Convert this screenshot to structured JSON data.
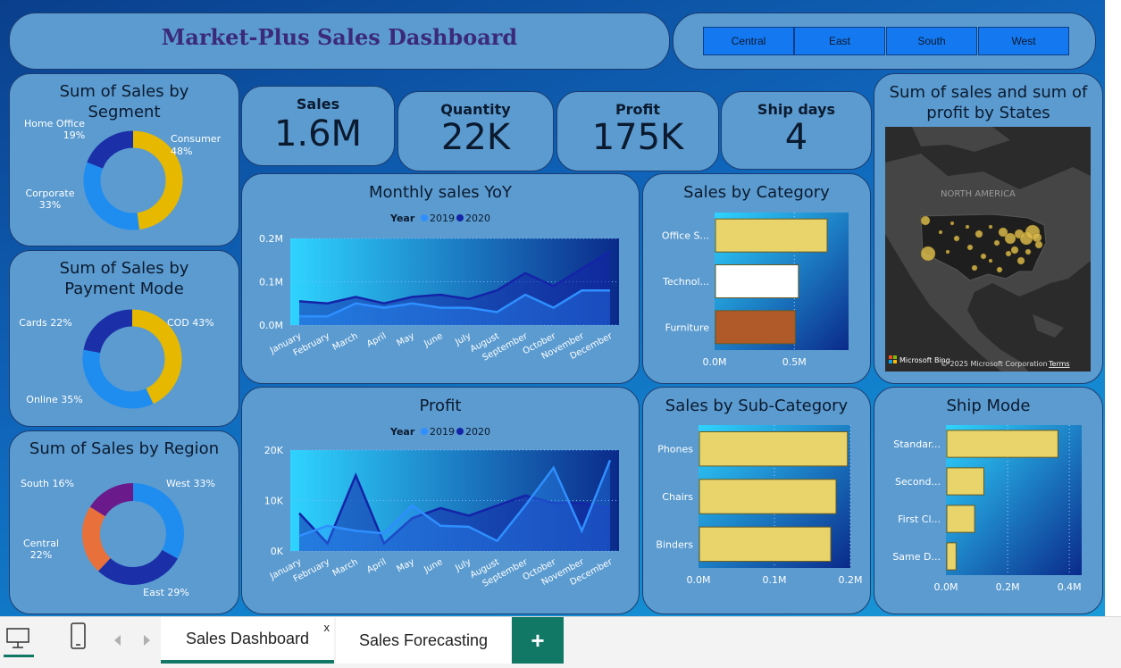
{
  "header": {
    "title": "Market-Plus Sales Dashboard"
  },
  "region_slicer": {
    "options": [
      "Central",
      "East",
      "South",
      "West"
    ]
  },
  "kpis": [
    {
      "label": "Sales",
      "value": "1.6M"
    },
    {
      "label": "Quantity",
      "value": "22K"
    },
    {
      "label": "Profit",
      "value": "175K"
    },
    {
      "label": "Ship days",
      "value": "4"
    }
  ],
  "segment_chart": {
    "title": "Sum of Sales by Segment"
  },
  "payment_chart": {
    "title": "Sum of Sales by Payment Mode"
  },
  "region_chart": {
    "title": "Sum of Sales by Region"
  },
  "monthly_chart": {
    "title": "Monthly sales YoY"
  },
  "profit_chart": {
    "title": "Profit"
  },
  "category_chart": {
    "title": "Sales by Category"
  },
  "subcategory_chart": {
    "title": "Sales by Sub-Category"
  },
  "shipmode_chart": {
    "title": "Ship Mode"
  },
  "map": {
    "title": "Sum of sales and sum of profit by States",
    "region_label": "NORTH AMERICA",
    "attribution": "Microsoft Bing",
    "copyright": "© 2025 Microsoft Corporation",
    "terms": "Terms"
  },
  "colors": {
    "series_2019": "#2f8fff",
    "series_2020": "#1424a8",
    "donut_gold": "#e6b800",
    "donut_blue": "#1f8cf0",
    "donut_navy": "#1a2fa8",
    "donut_orange": "#e8703a",
    "donut_purple": "#6a1a8a",
    "bar_gold": "#e8d46a",
    "bar_white": "#ffffff",
    "bar_rust": "#b05a2a",
    "canvas": "#0f63b8",
    "tab_accent": "#117865"
  },
  "tabs": {
    "items": [
      "Sales Dashboard",
      "Sales Forecasting"
    ],
    "active": "Sales Dashboard",
    "close_glyph": "x",
    "add_glyph": "+"
  },
  "chart_data": [
    {
      "type": "pie",
      "title": "Sum of Sales by Segment",
      "slices": [
        {
          "label": "Consumer",
          "value": 48,
          "pct": "48%",
          "color": "#e6b800"
        },
        {
          "label": "Corporate",
          "value": 33,
          "pct": "33%",
          "color": "#1f8cf0"
        },
        {
          "label": "Home Office",
          "value": 19,
          "pct": "19%",
          "color": "#1a2fa8"
        }
      ]
    },
    {
      "type": "pie",
      "title": "Sum of Sales by Payment Mode",
      "slices": [
        {
          "label": "COD",
          "value": 43,
          "pct": "43%",
          "color": "#e6b800"
        },
        {
          "label": "Online",
          "value": 35,
          "pct": "35%",
          "color": "#1f8cf0"
        },
        {
          "label": "Cards",
          "value": 22,
          "pct": "22%",
          "color": "#1a2fa8"
        }
      ]
    },
    {
      "type": "pie",
      "title": "Sum of Sales by Region",
      "slices": [
        {
          "label": "West",
          "value": 33,
          "pct": "33%",
          "color": "#1f8cf0"
        },
        {
          "label": "East",
          "value": 29,
          "pct": "29%",
          "color": "#1a2fa8"
        },
        {
          "label": "Central",
          "value": 22,
          "pct": "22%",
          "color": "#e8703a"
        },
        {
          "label": "South",
          "value": 16,
          "pct": "16%",
          "color": "#6a1a8a"
        }
      ]
    },
    {
      "type": "area",
      "title": "Monthly sales YoY",
      "legend_title": "Year",
      "categories": [
        "January",
        "February",
        "March",
        "April",
        "May",
        "June",
        "July",
        "August",
        "September",
        "October",
        "November",
        "December"
      ],
      "yticks": [
        "0.0M",
        "0.1M",
        "0.2M"
      ],
      "ylim": [
        0,
        0.2
      ],
      "series": [
        {
          "name": "2019",
          "values": [
            0.02,
            0.02,
            0.05,
            0.04,
            0.05,
            0.04,
            0.04,
            0.03,
            0.07,
            0.04,
            0.08,
            0.08
          ]
        },
        {
          "name": "2020",
          "values": [
            0.055,
            0.05,
            0.065,
            0.05,
            0.065,
            0.07,
            0.06,
            0.08,
            0.12,
            0.09,
            0.13,
            0.17
          ]
        }
      ]
    },
    {
      "type": "area",
      "title": "Profit",
      "legend_title": "Year",
      "categories": [
        "January",
        "February",
        "March",
        "April",
        "May",
        "June",
        "July",
        "August",
        "September",
        "October",
        "November",
        "December"
      ],
      "yticks": [
        "0K",
        "10K",
        "20K"
      ],
      "ylim": [
        0,
        20000
      ],
      "series": [
        {
          "name": "2019",
          "values": [
            3000,
            5000,
            4000,
            3500,
            9000,
            5000,
            4800,
            2000,
            9000,
            16500,
            4000,
            18000
          ]
        },
        {
          "name": "2020",
          "values": [
            7500,
            1500,
            15000,
            1500,
            6500,
            8500,
            7000,
            9000,
            11000,
            9500,
            9500,
            8500
          ]
        }
      ]
    },
    {
      "type": "bar",
      "title": "Sales by Category",
      "orientation": "horizontal",
      "categories": [
        "Office S...",
        "Technol...",
        "Furniture"
      ],
      "values": [
        0.7,
        0.52,
        0.5
      ],
      "xticks": [
        "0.0M",
        "0.5M"
      ],
      "xlim": [
        0,
        0.84
      ]
    },
    {
      "type": "bar",
      "title": "Sales by Sub-Category",
      "orientation": "horizontal",
      "categories": [
        "Phones",
        "Chairs",
        "Binders"
      ],
      "values": [
        0.195,
        0.18,
        0.173
      ],
      "xticks": [
        "0.0M",
        "0.1M",
        "0.2M"
      ],
      "xlim": [
        0,
        0.2
      ]
    },
    {
      "type": "bar",
      "title": "Ship Mode",
      "orientation": "horizontal",
      "categories": [
        "Standar...",
        "Second...",
        "First Cl...",
        "Same D..."
      ],
      "values": [
        0.36,
        0.12,
        0.09,
        0.03
      ],
      "xticks": [
        "0.0M",
        "0.2M",
        "0.4M"
      ],
      "xlim": [
        0,
        0.44
      ]
    }
  ]
}
